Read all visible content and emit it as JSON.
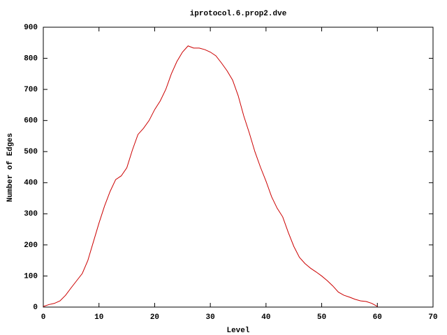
{
  "chart_data": {
    "type": "line",
    "title": "iprotocol.6.prop2.dve",
    "xlabel": "Level",
    "ylabel": "Number of Edges",
    "x": [
      0,
      1,
      2,
      3,
      4,
      5,
      6,
      7,
      8,
      9,
      10,
      11,
      12,
      13,
      14,
      15,
      16,
      17,
      18,
      19,
      20,
      21,
      22,
      23,
      24,
      25,
      26,
      27,
      28,
      29,
      30,
      31,
      32,
      33,
      34,
      35,
      36,
      37,
      38,
      39,
      40,
      41,
      42,
      43,
      44,
      45,
      46,
      47,
      48,
      49,
      50,
      51,
      52,
      53,
      54,
      55,
      56,
      57,
      58,
      59,
      60
    ],
    "series": [
      {
        "name": "",
        "color": "#cc0000",
        "values": [
          2,
          8,
          12,
          20,
          38,
          62,
          85,
          108,
          150,
          210,
          270,
          325,
          372,
          410,
          422,
          448,
          505,
          555,
          575,
          600,
          635,
          663,
          700,
          750,
          790,
          820,
          840,
          833,
          833,
          828,
          820,
          808,
          785,
          760,
          730,
          680,
          615,
          560,
          500,
          450,
          405,
          355,
          318,
          290,
          240,
          195,
          160,
          140,
          125,
          113,
          100,
          85,
          68,
          48,
          38,
          32,
          25,
          20,
          18,
          12,
          2
        ]
      }
    ],
    "xlim": [
      0,
      70
    ],
    "xticks": [
      0,
      10,
      20,
      30,
      40,
      50,
      60,
      70
    ],
    "ylim": [
      0,
      900
    ],
    "yticks": [
      0,
      100,
      200,
      300,
      400,
      500,
      600,
      700,
      800,
      900
    ]
  }
}
